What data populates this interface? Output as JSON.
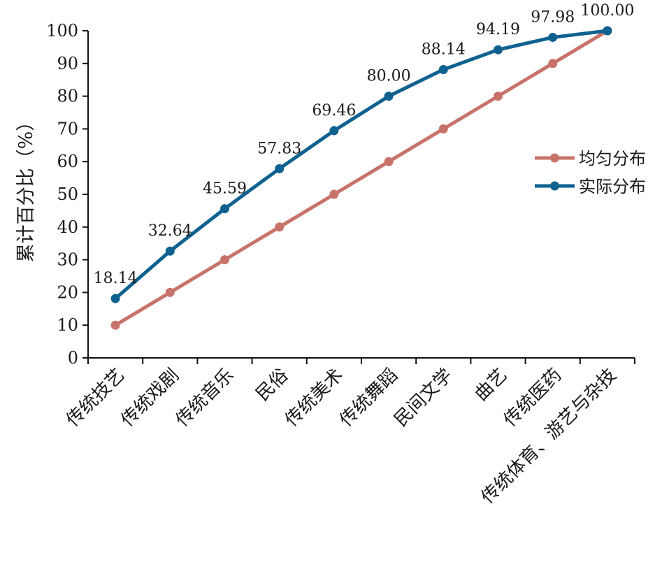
{
  "chart_data": {
    "type": "line",
    "title": "",
    "xlabel": "",
    "ylabel": "累计百分比（%）",
    "ylim": [
      0,
      100
    ],
    "yticks": [
      0,
      10,
      20,
      30,
      40,
      50,
      60,
      70,
      80,
      90,
      100
    ],
    "categories": [
      "传统技艺",
      "传统戏剧",
      "传统音乐",
      "民俗",
      "传统美术",
      "传统舞蹈",
      "民间文学",
      "曲艺",
      "传统医药",
      "传统体育、游艺与杂技"
    ],
    "series": [
      {
        "name": "均匀分布",
        "color": "#c8736a",
        "values": [
          10,
          20,
          30,
          40,
          50,
          60,
          70,
          80,
          90,
          100
        ],
        "show_labels": false
      },
      {
        "name": "实际分布",
        "color": "#0f6190",
        "values": [
          18.14,
          32.64,
          45.59,
          57.83,
          69.46,
          80.0,
          88.14,
          94.19,
          97.98,
          100.0
        ],
        "labels": [
          "18.14",
          "32.64",
          "45.59",
          "57.83",
          "69.46",
          "80.00",
          "88.14",
          "94.19",
          "97.98",
          "100.00"
        ],
        "show_labels": true
      }
    ],
    "legend_position": "right",
    "grid": false
  }
}
